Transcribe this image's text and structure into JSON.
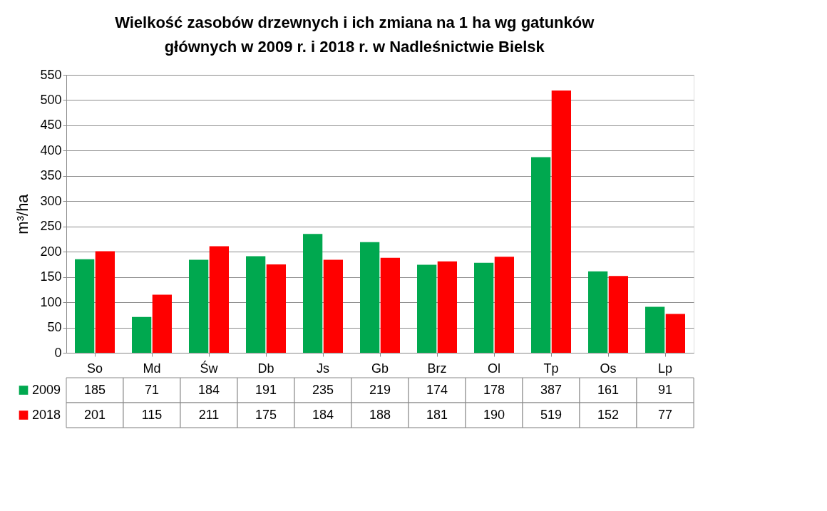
{
  "chart_data": {
    "type": "bar",
    "title": "Wielkość zasobów drzewnych i ich zmiana na 1 ha wg gatunków głównych w 2009 r. i 2018 r. w Nadleśnictwie Bielsk",
    "ylabel": "m³/ha",
    "categories": [
      "So",
      "Md",
      "Św",
      "Db",
      "Js",
      "Gb",
      "Brz",
      "Ol",
      "Tp",
      "Os",
      "Lp"
    ],
    "series": [
      {
        "name": "2009",
        "color": "#00a84f",
        "values": [
          185,
          71,
          184,
          191,
          235,
          219,
          174,
          178,
          387,
          161,
          91
        ]
      },
      {
        "name": "2018",
        "color": "#ff0000",
        "values": [
          201,
          115,
          211,
          175,
          184,
          188,
          181,
          190,
          519,
          152,
          77
        ]
      }
    ],
    "ylim": [
      0,
      550
    ],
    "yticks": [
      0,
      50,
      100,
      150,
      200,
      250,
      300,
      350,
      400,
      450,
      500,
      550
    ],
    "grid": "y",
    "legend": "bottom",
    "data_labels": true
  }
}
